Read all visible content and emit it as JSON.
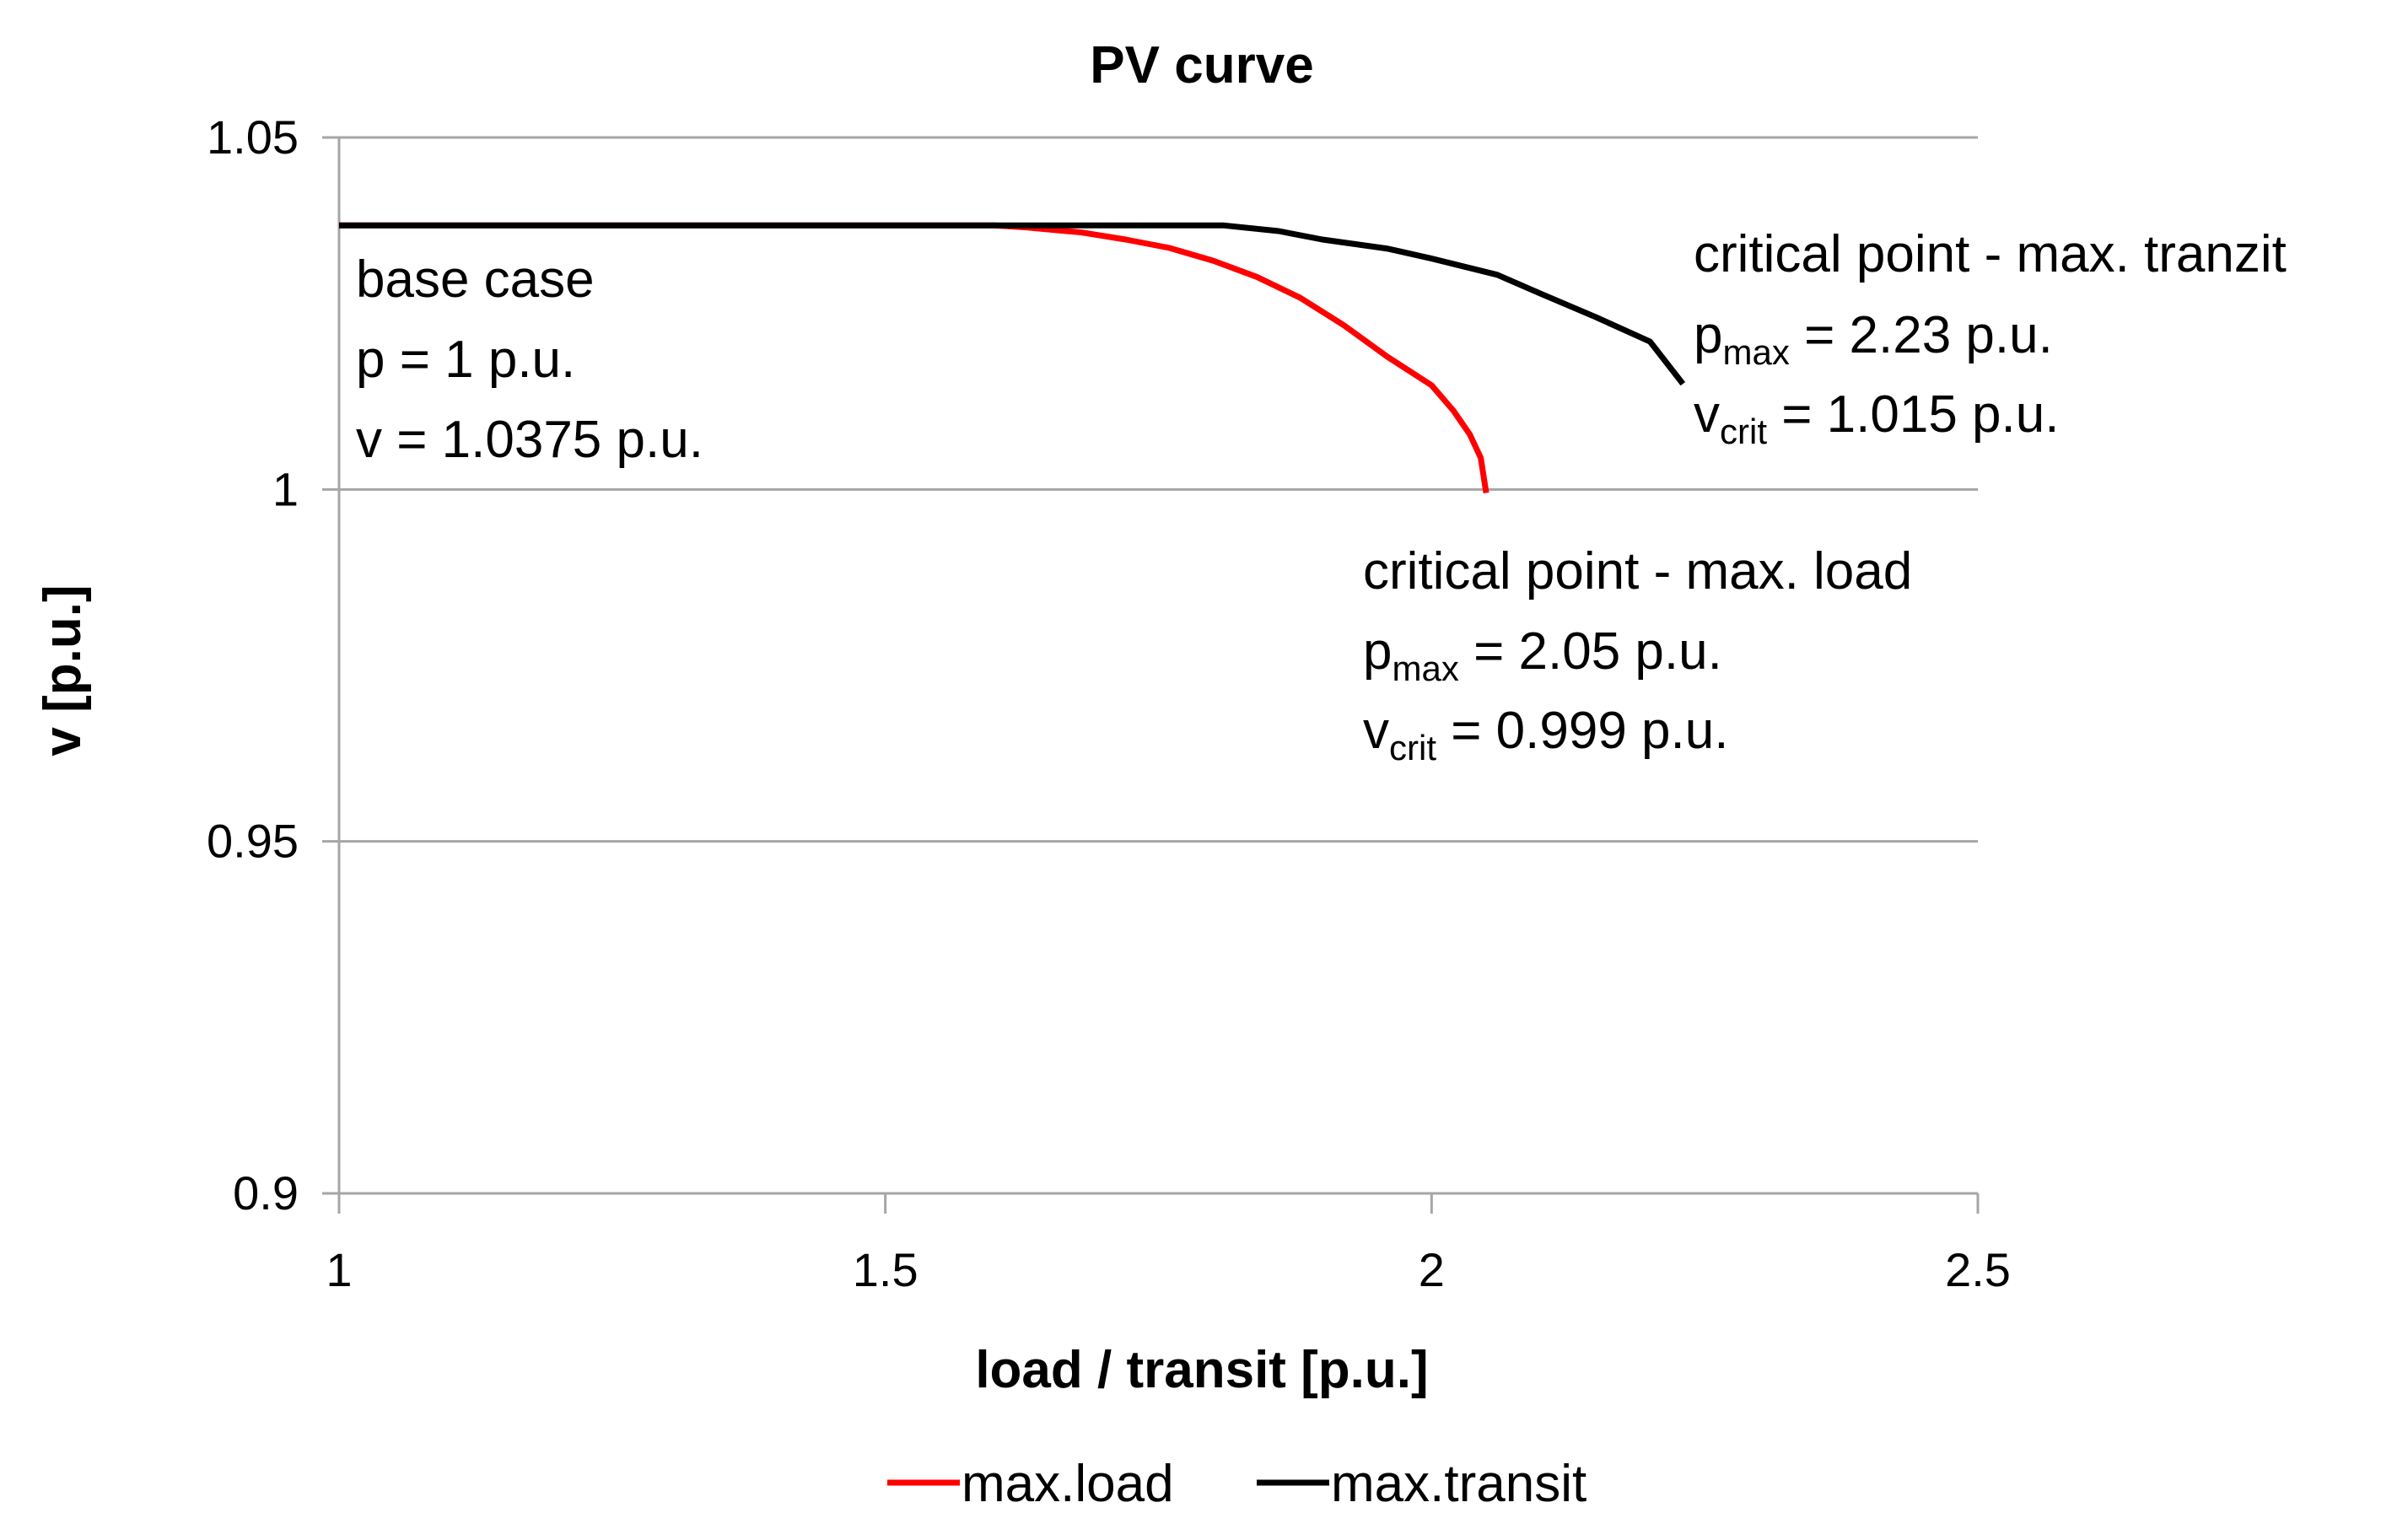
{
  "chart_data": {
    "type": "line",
    "title": "PV curve",
    "xlabel": "load / transit  [p.u.]",
    "ylabel": "v  [p.u.]",
    "xlim": [
      1,
      2.5
    ],
    "ylim": [
      0.9,
      1.05
    ],
    "x_ticks": [
      1,
      1.5,
      2,
      2.5
    ],
    "x_tick_labels": [
      "1",
      "1.5",
      "2",
      "2.5"
    ],
    "y_ticks": [
      0.9,
      0.95,
      1,
      1.05
    ],
    "y_tick_labels": [
      "0.9",
      "0.95",
      "1",
      "1.05"
    ],
    "grid": "horizontal",
    "legend_position": "bottom",
    "colors": {
      "max_load": "#ff0000",
      "max_transit": "#000000",
      "grid": "#a6a6a6",
      "axis": "#a6a6a6"
    },
    "series": [
      {
        "name": "max.load",
        "color": "#ff0000",
        "x": [
          1.0,
          1.6,
          1.63,
          1.68,
          1.72,
          1.76,
          1.8,
          1.84,
          1.88,
          1.92,
          1.96,
          2.0,
          2.02,
          2.035,
          2.045,
          2.05
        ],
        "y": [
          1.0375,
          1.0375,
          1.0372,
          1.0365,
          1.0355,
          1.0343,
          1.0325,
          1.0302,
          1.0272,
          1.0233,
          1.0188,
          1.0148,
          1.0112,
          1.0078,
          1.0045,
          0.9995
        ]
      },
      {
        "name": "max.transit",
        "color": "#000000",
        "x": [
          1.0,
          1.81,
          1.86,
          1.9,
          1.96,
          2.0,
          2.06,
          2.1,
          2.15,
          2.2,
          2.23
        ],
        "y": [
          1.0375,
          1.0375,
          1.0367,
          1.0355,
          1.0342,
          1.0328,
          1.0305,
          1.0278,
          1.0245,
          1.021,
          1.015
        ]
      }
    ],
    "annotations": [
      {
        "id": "base",
        "lines": [
          "base case",
          "p = 1 p.u.",
          "v = 1.0375 p.u."
        ]
      },
      {
        "id": "transit",
        "heading": "critical point - max. tranzit",
        "p_var": "p",
        "p_sub": "max",
        "p_rest": " = 2.23 p.u.",
        "v_var": "v",
        "v_sub": "crit",
        "v_rest": " = 1.015 p.u."
      },
      {
        "id": "load",
        "heading": "critical point - max. load",
        "p_var": "p",
        "p_sub": "max",
        "p_rest": " = 2.05 p.u.",
        "v_var": "v",
        "v_sub": "crit",
        "v_rest": " = 0.999 p.u."
      }
    ]
  }
}
